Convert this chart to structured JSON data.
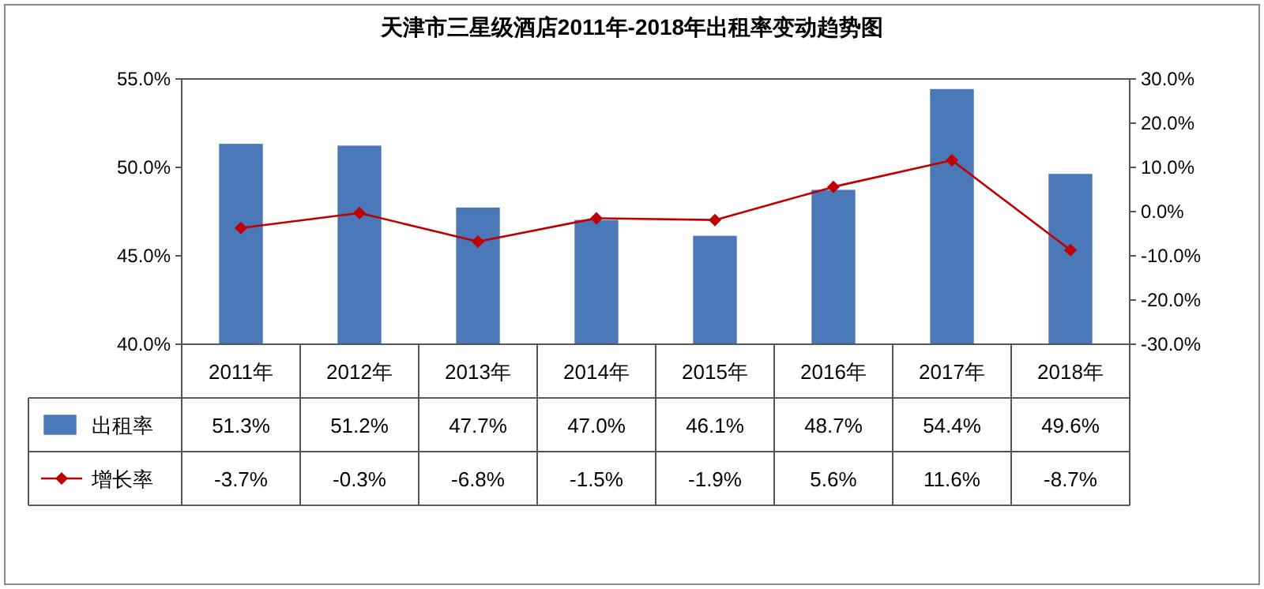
{
  "chart_data": {
    "type": "bar",
    "title": "天津市三星级酒店2011年-2018年出租率变动趋势图",
    "categories": [
      "2011年",
      "2012年",
      "2013年",
      "2014年",
      "2015年",
      "2016年",
      "2017年",
      "2018年"
    ],
    "series": [
      {
        "name": "出租率",
        "color": "#4a78b8",
        "values": [
          51.3,
          51.2,
          47.7,
          47.0,
          46.1,
          48.7,
          54.4,
          49.6
        ],
        "value_labels": [
          "51.3%",
          "51.2%",
          "47.7%",
          "47.0%",
          "46.1%",
          "48.7%",
          "54.4%",
          "49.6%"
        ]
      },
      {
        "name": "增长率",
        "type": "line",
        "axis": "y2",
        "color": "#c00000",
        "marker": "diamond",
        "values": [
          -3.7,
          -0.3,
          -6.8,
          -1.5,
          -1.9,
          5.6,
          11.6,
          -8.7
        ],
        "value_labels": [
          "-3.7%",
          "-0.3%",
          "-6.8%",
          "-1.5%",
          "-1.9%",
          "5.6%",
          "11.6%",
          "-8.7%"
        ]
      }
    ],
    "ylim": [
      40,
      55
    ],
    "yticks": [
      {
        "value": 40,
        "label": "40.0%"
      },
      {
        "value": 45,
        "label": "45.0%"
      },
      {
        "value": 50,
        "label": "50.0%"
      },
      {
        "value": 55,
        "label": "55.0%"
      }
    ],
    "y2lim": [
      -30,
      30
    ],
    "y2ticks": [
      {
        "value": -30,
        "label": "-30.0%"
      },
      {
        "value": -20,
        "label": "-20.0%"
      },
      {
        "value": -10,
        "label": "-10.0%"
      },
      {
        "value": 0,
        "label": "0.0%"
      },
      {
        "value": 10,
        "label": "10.0%"
      },
      {
        "value": 20,
        "label": "20.0%"
      },
      {
        "value": 30,
        "label": "30.0%"
      }
    ],
    "grid": false,
    "legend": "bottom"
  }
}
